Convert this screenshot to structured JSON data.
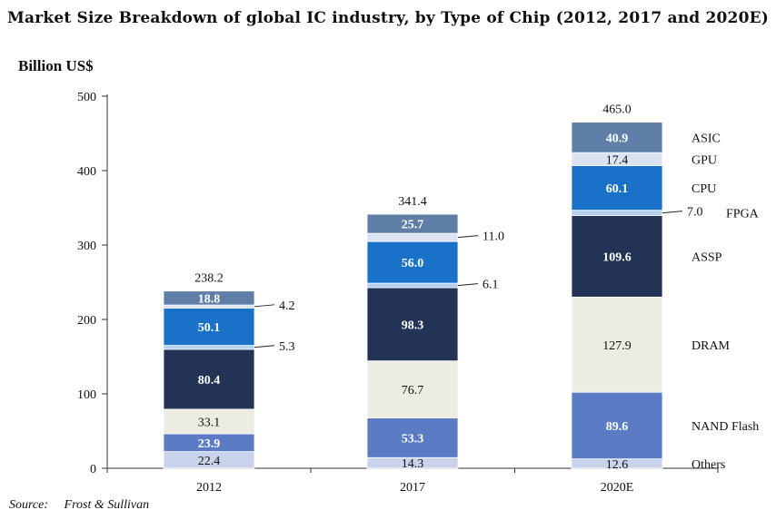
{
  "title": "Market Size Breakdown of global IC industry, by Type of Chip (2012, 2017 and 2020E)",
  "unit_label": "Billion US$",
  "source": {
    "label": "Source:",
    "value": "Frost & Sullivan"
  },
  "chart_data": {
    "type": "bar",
    "stacked": true,
    "categories": [
      "2012",
      "2017",
      "2020E"
    ],
    "totals": [
      "238.2",
      "341.4",
      "465.0"
    ],
    "ylim": [
      0,
      500
    ],
    "yticks": [
      0,
      100,
      200,
      300,
      400,
      500
    ],
    "grid": false,
    "legend": "right",
    "series": [
      {
        "name": "Others",
        "values": [
          22.4,
          14.3,
          12.6
        ],
        "color": "#c9d3ec",
        "label_color": "#111111"
      },
      {
        "name": "NAND Flash",
        "values": [
          23.9,
          53.3,
          89.6
        ],
        "color": "#5b7cc4",
        "label_color": "#ffffff"
      },
      {
        "name": "DRAM",
        "values": [
          33.1,
          76.7,
          127.9
        ],
        "color": "#edece2",
        "label_color": "#111111"
      },
      {
        "name": "ASSP",
        "values": [
          80.4,
          98.3,
          109.6
        ],
        "color": "#223356",
        "label_color": "#ffffff"
      },
      {
        "name": "FPGA",
        "values": [
          5.3,
          6.1,
          7.0
        ],
        "color": "#b4d0ee",
        "label_color": "#111111"
      },
      {
        "name": "CPU",
        "values": [
          50.1,
          56.0,
          60.1
        ],
        "color": "#1a72c8",
        "label_color": "#ffffff"
      },
      {
        "name": "GPU",
        "values": [
          4.2,
          11.0,
          17.4
        ],
        "color": "#dbe3f2",
        "label_color": "#111111"
      },
      {
        "name": "ASIC",
        "values": [
          18.8,
          25.7,
          40.9
        ],
        "color": "#5f7fa8",
        "label_color": "#ffffff"
      }
    ]
  }
}
